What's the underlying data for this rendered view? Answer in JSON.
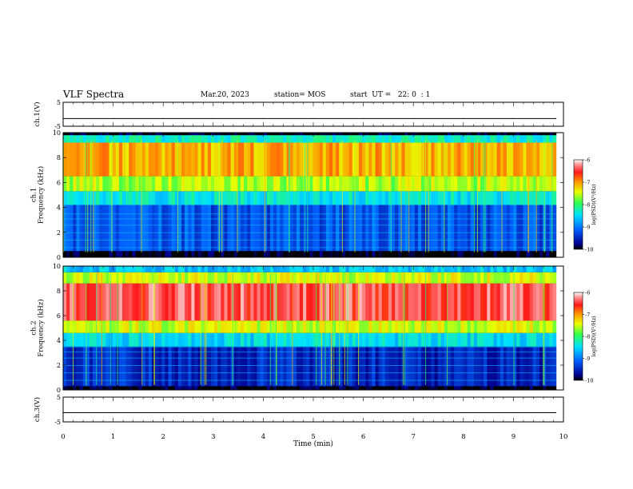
{
  "header": {
    "title": "VLF Spectra",
    "date": "Mar.20, 2023",
    "station": "station= MOS",
    "start": "start  UT =   22: 0  : 1"
  },
  "chart_data": [
    {
      "type": "line",
      "name": "ch1-voltage",
      "ylabel": "ch.1(V)",
      "ylim": [
        -5,
        5
      ],
      "y_ticks": [
        "5",
        "-5"
      ],
      "x": [
        0,
        1,
        2,
        3,
        4,
        5,
        6,
        7,
        8,
        9,
        9.85
      ],
      "values": [
        -1.8,
        -1.8,
        -1.8,
        -1.8,
        -1.8,
        -1.8,
        -1.8,
        -1.8,
        -1.8,
        -1.8,
        -1.8
      ]
    },
    {
      "type": "heatmap",
      "name": "ch1-spectrogram",
      "ylabel": "ch.1\nFrequency (kHz)",
      "ylim": [
        0,
        10
      ],
      "y_ticks": [
        "0",
        "2",
        "4",
        "6",
        "8",
        "10"
      ],
      "x_data_range": [
        0,
        9.85
      ],
      "band_kHz": [
        {
          "from": 0,
          "to": 0.5,
          "log_psd": -10
        },
        {
          "from": 0.5,
          "to": 4.2,
          "log_psd": -9.2
        },
        {
          "from": 4.2,
          "to": 5.3,
          "log_psd": -8.4
        },
        {
          "from": 5.3,
          "to": 6.5,
          "log_psd": -7.6
        },
        {
          "from": 6.5,
          "to": 9.2,
          "log_psd": -7.1
        },
        {
          "from": 9.2,
          "to": 9.8,
          "log_psd": -8.3
        },
        {
          "from": 9.8,
          "to": 10,
          "log_psd": -10
        }
      ],
      "colorbar": {
        "label": "log(PSD)(V²/Hz)",
        "range": [
          -10,
          -6
        ],
        "ticks": [
          "-6",
          "-7",
          "-8",
          "-9",
          "-10"
        ]
      }
    },
    {
      "type": "heatmap",
      "name": "ch2-spectrogram",
      "ylabel": "ch.2\nFrequency (kHz)",
      "ylim": [
        0,
        10
      ],
      "y_ticks": [
        "0",
        "2",
        "4",
        "6",
        "8",
        "10"
      ],
      "x_data_range": [
        0,
        9.85
      ],
      "band_kHz": [
        {
          "from": 0,
          "to": 0.3,
          "log_psd": -10
        },
        {
          "from": 0.3,
          "to": 3.5,
          "log_psd": -9.5
        },
        {
          "from": 3.5,
          "to": 4.6,
          "log_psd": -8.5
        },
        {
          "from": 4.6,
          "to": 5.6,
          "log_psd": -7.5
        },
        {
          "from": 5.6,
          "to": 8.6,
          "log_psd": -6.4
        },
        {
          "from": 8.6,
          "to": 9.5,
          "log_psd": -7.5
        },
        {
          "from": 9.5,
          "to": 10,
          "log_psd": -8.6
        }
      ],
      "colorbar": {
        "label": "log(PSD)(V²/Hz)",
        "range": [
          -10,
          -6
        ],
        "ticks": [
          "-6",
          "-7",
          "-8",
          "-9",
          "-10"
        ]
      }
    },
    {
      "type": "line",
      "name": "ch3-voltage",
      "ylabel": "ch.3(V)",
      "ylim": [
        -5,
        5
      ],
      "y_ticks": [
        "5",
        "-5"
      ],
      "x": [
        0,
        1,
        2,
        3,
        4,
        5,
        6,
        7,
        8,
        9,
        9.85
      ],
      "values": [
        -1.3,
        -1.3,
        -1.3,
        -1.3,
        -1.3,
        -1.3,
        -1.3,
        -1.3,
        -1.3,
        -1.3,
        -1.3
      ]
    }
  ],
  "x_axis": {
    "label": "Time (min)",
    "xlim": [
      0,
      10
    ],
    "ticks": [
      "0",
      "1",
      "2",
      "3",
      "4",
      "5",
      "6",
      "7",
      "8",
      "9",
      "10"
    ]
  }
}
